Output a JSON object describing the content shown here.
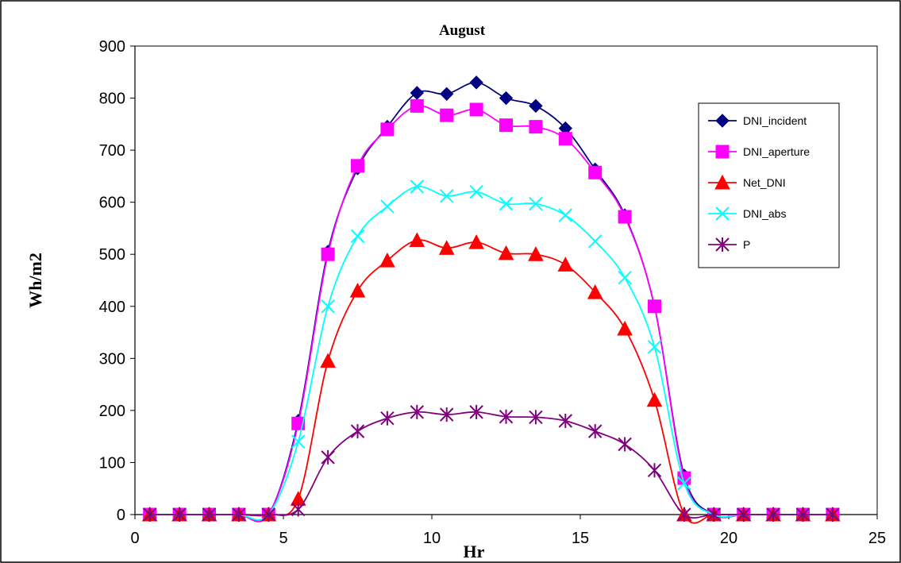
{
  "chart_data": {
    "type": "line",
    "title": "August",
    "xlabel": "Hr",
    "ylabel": "Wh/m2",
    "xlim": [
      0,
      25
    ],
    "ylim": [
      0,
      900
    ],
    "xticks": [
      0,
      5,
      10,
      15,
      20,
      25
    ],
    "yticks": [
      0,
      100,
      200,
      300,
      400,
      500,
      600,
      700,
      800,
      900
    ],
    "grid": false,
    "legend_position": "right",
    "x": [
      0.5,
      1.5,
      2.5,
      3.5,
      4.5,
      5.5,
      6.5,
      7.5,
      8.5,
      9.5,
      10.5,
      11.5,
      12.5,
      13.5,
      14.5,
      15.5,
      16.5,
      17.5,
      18.5,
      19.5,
      20.5,
      21.5,
      22.5,
      23.5
    ],
    "series": [
      {
        "name": "DNI_incident",
        "color": "#000080",
        "marker": "diamond",
        "values": [
          0,
          0,
          0,
          0,
          0,
          180,
          505,
          665,
          745,
          810,
          808,
          830,
          800,
          785,
          742,
          663,
          575,
          400,
          75,
          0,
          0,
          0,
          0,
          0
        ]
      },
      {
        "name": "DNI_aperture",
        "color": "#ff00ff",
        "marker": "square",
        "values": [
          0,
          0,
          0,
          0,
          0,
          175,
          500,
          670,
          740,
          785,
          767,
          778,
          748,
          745,
          722,
          657,
          572,
          400,
          70,
          0,
          0,
          0,
          0,
          0
        ]
      },
      {
        "name": "Net_DNI",
        "color": "#ff0000",
        "marker": "triangle",
        "values": [
          0,
          0,
          0,
          0,
          0,
          30,
          295,
          430,
          488,
          527,
          512,
          523,
          502,
          500,
          480,
          427,
          357,
          220,
          0,
          0,
          0,
          0,
          0,
          0
        ]
      },
      {
        "name": "DNI_abs",
        "color": "#00ffff",
        "marker": "x",
        "values": [
          0,
          0,
          0,
          0,
          0,
          140,
          400,
          535,
          592,
          630,
          612,
          620,
          597,
          597,
          575,
          525,
          455,
          322,
          60,
          0,
          0,
          0,
          0,
          0
        ]
      },
      {
        "name": "P",
        "color": "#800080",
        "marker": "star",
        "values": [
          0,
          0,
          0,
          0,
          0,
          10,
          110,
          160,
          185,
          197,
          192,
          197,
          188,
          187,
          180,
          160,
          135,
          85,
          0,
          0,
          0,
          0,
          0,
          0
        ]
      }
    ]
  }
}
